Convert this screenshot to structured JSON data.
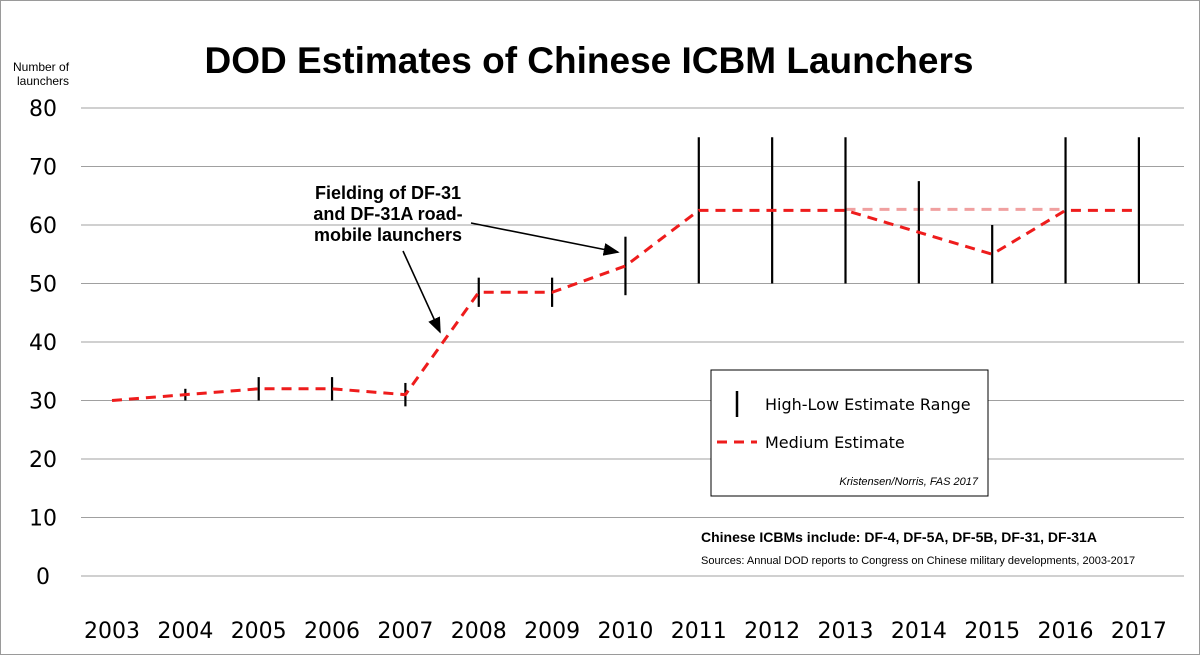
{
  "chart_data": {
    "type": "line",
    "title": "DOD Estimates of Chinese ICBM Launchers",
    "ylabel": [
      "Number of",
      "launchers"
    ],
    "xlabel": "",
    "ylim": [
      0,
      80
    ],
    "yticks": [
      0,
      10,
      20,
      30,
      40,
      50,
      60,
      70,
      80
    ],
    "grid": true,
    "categories": [
      "2003",
      "2004",
      "2005",
      "2006",
      "2007",
      "2008",
      "2009",
      "2010",
      "2011",
      "2012",
      "2013",
      "2014",
      "2015",
      "2016",
      "2017"
    ],
    "series": [
      {
        "name": "Medium Estimate",
        "style": "dashed",
        "color": "#ee1c1c",
        "values": [
          30,
          31,
          32,
          32,
          31,
          48.5,
          48.5,
          53,
          62.5,
          62.5,
          62.5,
          58.75,
          55,
          62.5,
          62.5
        ]
      },
      {
        "name": "High-Low Estimate Range",
        "style": "range",
        "color": "#000000",
        "ranges": [
          [
            30,
            30
          ],
          [
            30,
            32
          ],
          [
            30,
            34
          ],
          [
            30,
            34
          ],
          [
            29,
            33
          ],
          [
            46,
            51
          ],
          [
            46,
            51
          ],
          [
            48,
            58
          ],
          [
            50,
            75
          ],
          [
            50,
            75
          ],
          [
            50,
            75
          ],
          [
            50,
            67.5
          ],
          [
            50,
            60
          ],
          [
            50,
            75
          ],
          [
            50,
            75
          ]
        ]
      }
    ],
    "faded_line": {
      "color": "#f0a0a0",
      "style": "dashed",
      "from": "2013",
      "to": "2016",
      "value": 62.5
    },
    "annotation": {
      "lines": [
        "Fielding of DF-31",
        "and DF-31A road-",
        "mobile launchers"
      ],
      "arrow_targets": [
        {
          "x": "2007",
          "offset": 0.5,
          "y": 41
        },
        {
          "x": "2010",
          "offset": -0.1,
          "y": 55
        }
      ]
    },
    "legend": {
      "position": "center-right",
      "items": [
        {
          "label": "High-Low Estimate Range",
          "marker": "vertical-bar"
        },
        {
          "label": "Medium Estimate",
          "marker": "dashed-line"
        }
      ],
      "credit": "Kristensen/Norris, FAS 2017"
    },
    "notes": [
      "Chinese ICBMs include: DF-4, DF-5A, DF-5B, DF-31, DF-31A",
      "Sources: Annual DOD reports to Congress on Chinese military developments, 2003-2017"
    ],
    "colors": {
      "grid": "#a0a0a0",
      "medium": "#ee1c1c",
      "range": "#000000"
    }
  }
}
